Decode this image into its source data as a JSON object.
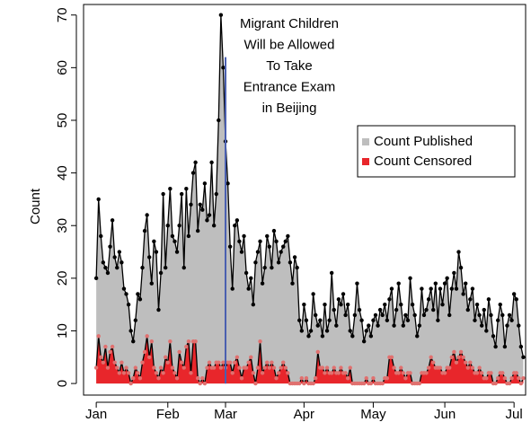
{
  "chart_data": {
    "type": "area",
    "y_label": "Count",
    "x": [
      0,
      1,
      2,
      3,
      4,
      5,
      6,
      7,
      8,
      9,
      10,
      11,
      12,
      13,
      14,
      15,
      16,
      17,
      18,
      19,
      20,
      21,
      22,
      23,
      24,
      25,
      26,
      27,
      28,
      29,
      30,
      31,
      32,
      33,
      34,
      35,
      36,
      37,
      38,
      39,
      40,
      41,
      42,
      43,
      44,
      45,
      46,
      47,
      48,
      49,
      50,
      51,
      52,
      53,
      54,
      55,
      56,
      57,
      58,
      59,
      60,
      61,
      62,
      63,
      64,
      65,
      66,
      67,
      68,
      69,
      70,
      71,
      72,
      73,
      74,
      75,
      76,
      77,
      78,
      79,
      80,
      81,
      82,
      83,
      84,
      85,
      86,
      87,
      88,
      89,
      90,
      91,
      92,
      93,
      94,
      95,
      96,
      97,
      98,
      99,
      100,
      101,
      102,
      103,
      104,
      105,
      106,
      107,
      108,
      109,
      110,
      111,
      112,
      113,
      114,
      115,
      116,
      117,
      118,
      119,
      120,
      121,
      122,
      123,
      124,
      125,
      126,
      127,
      128,
      129,
      130,
      131,
      132,
      133,
      134,
      135,
      136,
      137,
      138,
      139,
      140,
      141,
      142,
      143,
      144,
      145,
      146,
      147,
      148,
      149,
      150,
      151,
      152,
      153,
      154,
      155,
      156,
      157,
      158,
      159,
      160,
      161,
      162,
      163,
      164,
      165,
      166,
      167,
      168,
      169,
      170,
      171,
      172,
      173,
      174,
      175,
      176,
      177,
      178,
      179,
      180,
      181,
      182,
      183,
      184,
      185
    ],
    "series": [
      {
        "name": "Count Published",
        "color": "#bebebe",
        "point_color": "#000000",
        "values": [
          20,
          35,
          28,
          23,
          22,
          21,
          26,
          31,
          24,
          22,
          25,
          23,
          18,
          17,
          15,
          10,
          8,
          12,
          17,
          16,
          22,
          29,
          32,
          24,
          19,
          27,
          25,
          14,
          21,
          36,
          22,
          30,
          37,
          28,
          27,
          25,
          30,
          36,
          22,
          37,
          28,
          34,
          40,
          42,
          29,
          34,
          33,
          38,
          31,
          32,
          42,
          30,
          36,
          50,
          70,
          60,
          46,
          38,
          26,
          18,
          30,
          31,
          27,
          25,
          28,
          21,
          18,
          20,
          15,
          23,
          25,
          27,
          19,
          22,
          28,
          26,
          22,
          29,
          27,
          23,
          25,
          26,
          27,
          28,
          23,
          19,
          24,
          22,
          12,
          10,
          15,
          12,
          9,
          10,
          17,
          13,
          11,
          12,
          9,
          15,
          10,
          12,
          21,
          14,
          11,
          16,
          15,
          17,
          13,
          15,
          10,
          9,
          13,
          19,
          14,
          12,
          8,
          10,
          11,
          9,
          12,
          13,
          11,
          14,
          13,
          15,
          12,
          16,
          18,
          11,
          14,
          19,
          15,
          11,
          13,
          12,
          20,
          15,
          13,
          9,
          11,
          18,
          13,
          14,
          16,
          18,
          14,
          19,
          12,
          18,
          15,
          19,
          20,
          13,
          18,
          21,
          18,
          25,
          22,
          17,
          19,
          14,
          16,
          18,
          12,
          15,
          13,
          11,
          14,
          10,
          16,
          13,
          9,
          7,
          12,
          15,
          13,
          7,
          11,
          13,
          12,
          17,
          16,
          11,
          7,
          5
        ]
      },
      {
        "name": "Count Censored",
        "color": "#e8262b",
        "point_color": "#e0706f",
        "values": [
          3,
          9,
          5,
          4,
          7,
          3,
          6,
          7,
          4,
          3,
          2,
          4,
          2,
          3,
          2,
          0,
          1,
          3,
          2,
          1,
          4,
          6,
          9,
          5,
          8,
          3,
          2,
          1,
          3,
          2,
          5,
          4,
          8,
          3,
          2,
          1,
          6,
          4,
          3,
          7,
          8,
          2,
          8,
          8,
          1,
          0,
          1,
          0,
          3,
          4,
          3,
          3,
          4,
          4,
          3,
          4,
          3,
          4,
          4,
          2,
          4,
          5,
          3,
          1,
          3,
          3,
          4,
          5,
          2,
          0,
          3,
          8,
          2,
          3,
          4,
          3,
          4,
          3,
          1,
          2,
          3,
          4,
          3,
          2,
          0,
          0,
          0,
          0,
          0,
          1,
          0,
          1,
          0,
          0,
          0,
          1,
          6,
          3,
          3,
          2,
          3,
          2,
          2,
          3,
          2,
          2,
          3,
          2,
          2,
          1,
          3,
          0,
          0,
          0,
          0,
          0,
          0,
          1,
          0,
          0,
          1,
          0,
          0,
          0,
          0,
          1,
          1,
          5,
          5,
          3,
          2,
          2,
          3,
          2,
          1,
          2,
          2,
          0,
          0,
          0,
          0,
          2,
          2,
          2,
          3,
          5,
          4,
          3,
          3,
          3,
          2,
          2,
          3,
          3,
          5,
          6,
          4,
          5,
          6,
          5,
          4,
          3,
          4,
          3,
          2,
          2,
          3,
          2,
          1,
          1,
          2,
          2,
          0,
          0,
          1,
          2,
          2,
          1,
          0,
          0,
          1,
          2,
          2,
          1,
          0,
          1
        ]
      }
    ],
    "xlim": [
      -5.5,
      186
    ],
    "xticks": [
      {
        "value": 0,
        "label": "Jan"
      },
      {
        "value": 31,
        "label": "Feb"
      },
      {
        "value": 56,
        "label": "Mar"
      },
      {
        "value": 90,
        "label": "Apr"
      },
      {
        "value": 120,
        "label": "May"
      },
      {
        "value": 151,
        "label": "Jun"
      },
      {
        "value": 181,
        "label": "Jul"
      }
    ],
    "ylim": [
      -2.2,
      72
    ],
    "yticks": [
      0,
      10,
      20,
      30,
      40,
      50,
      60,
      70
    ],
    "legend": "right",
    "annotation": {
      "text": [
        "Migrant Children",
        "Will be Allowed",
        "To Take",
        "Entrance Exam",
        "in Beijing"
      ],
      "x": 56,
      "y": 62,
      "color": "#4a5fb0"
    }
  }
}
